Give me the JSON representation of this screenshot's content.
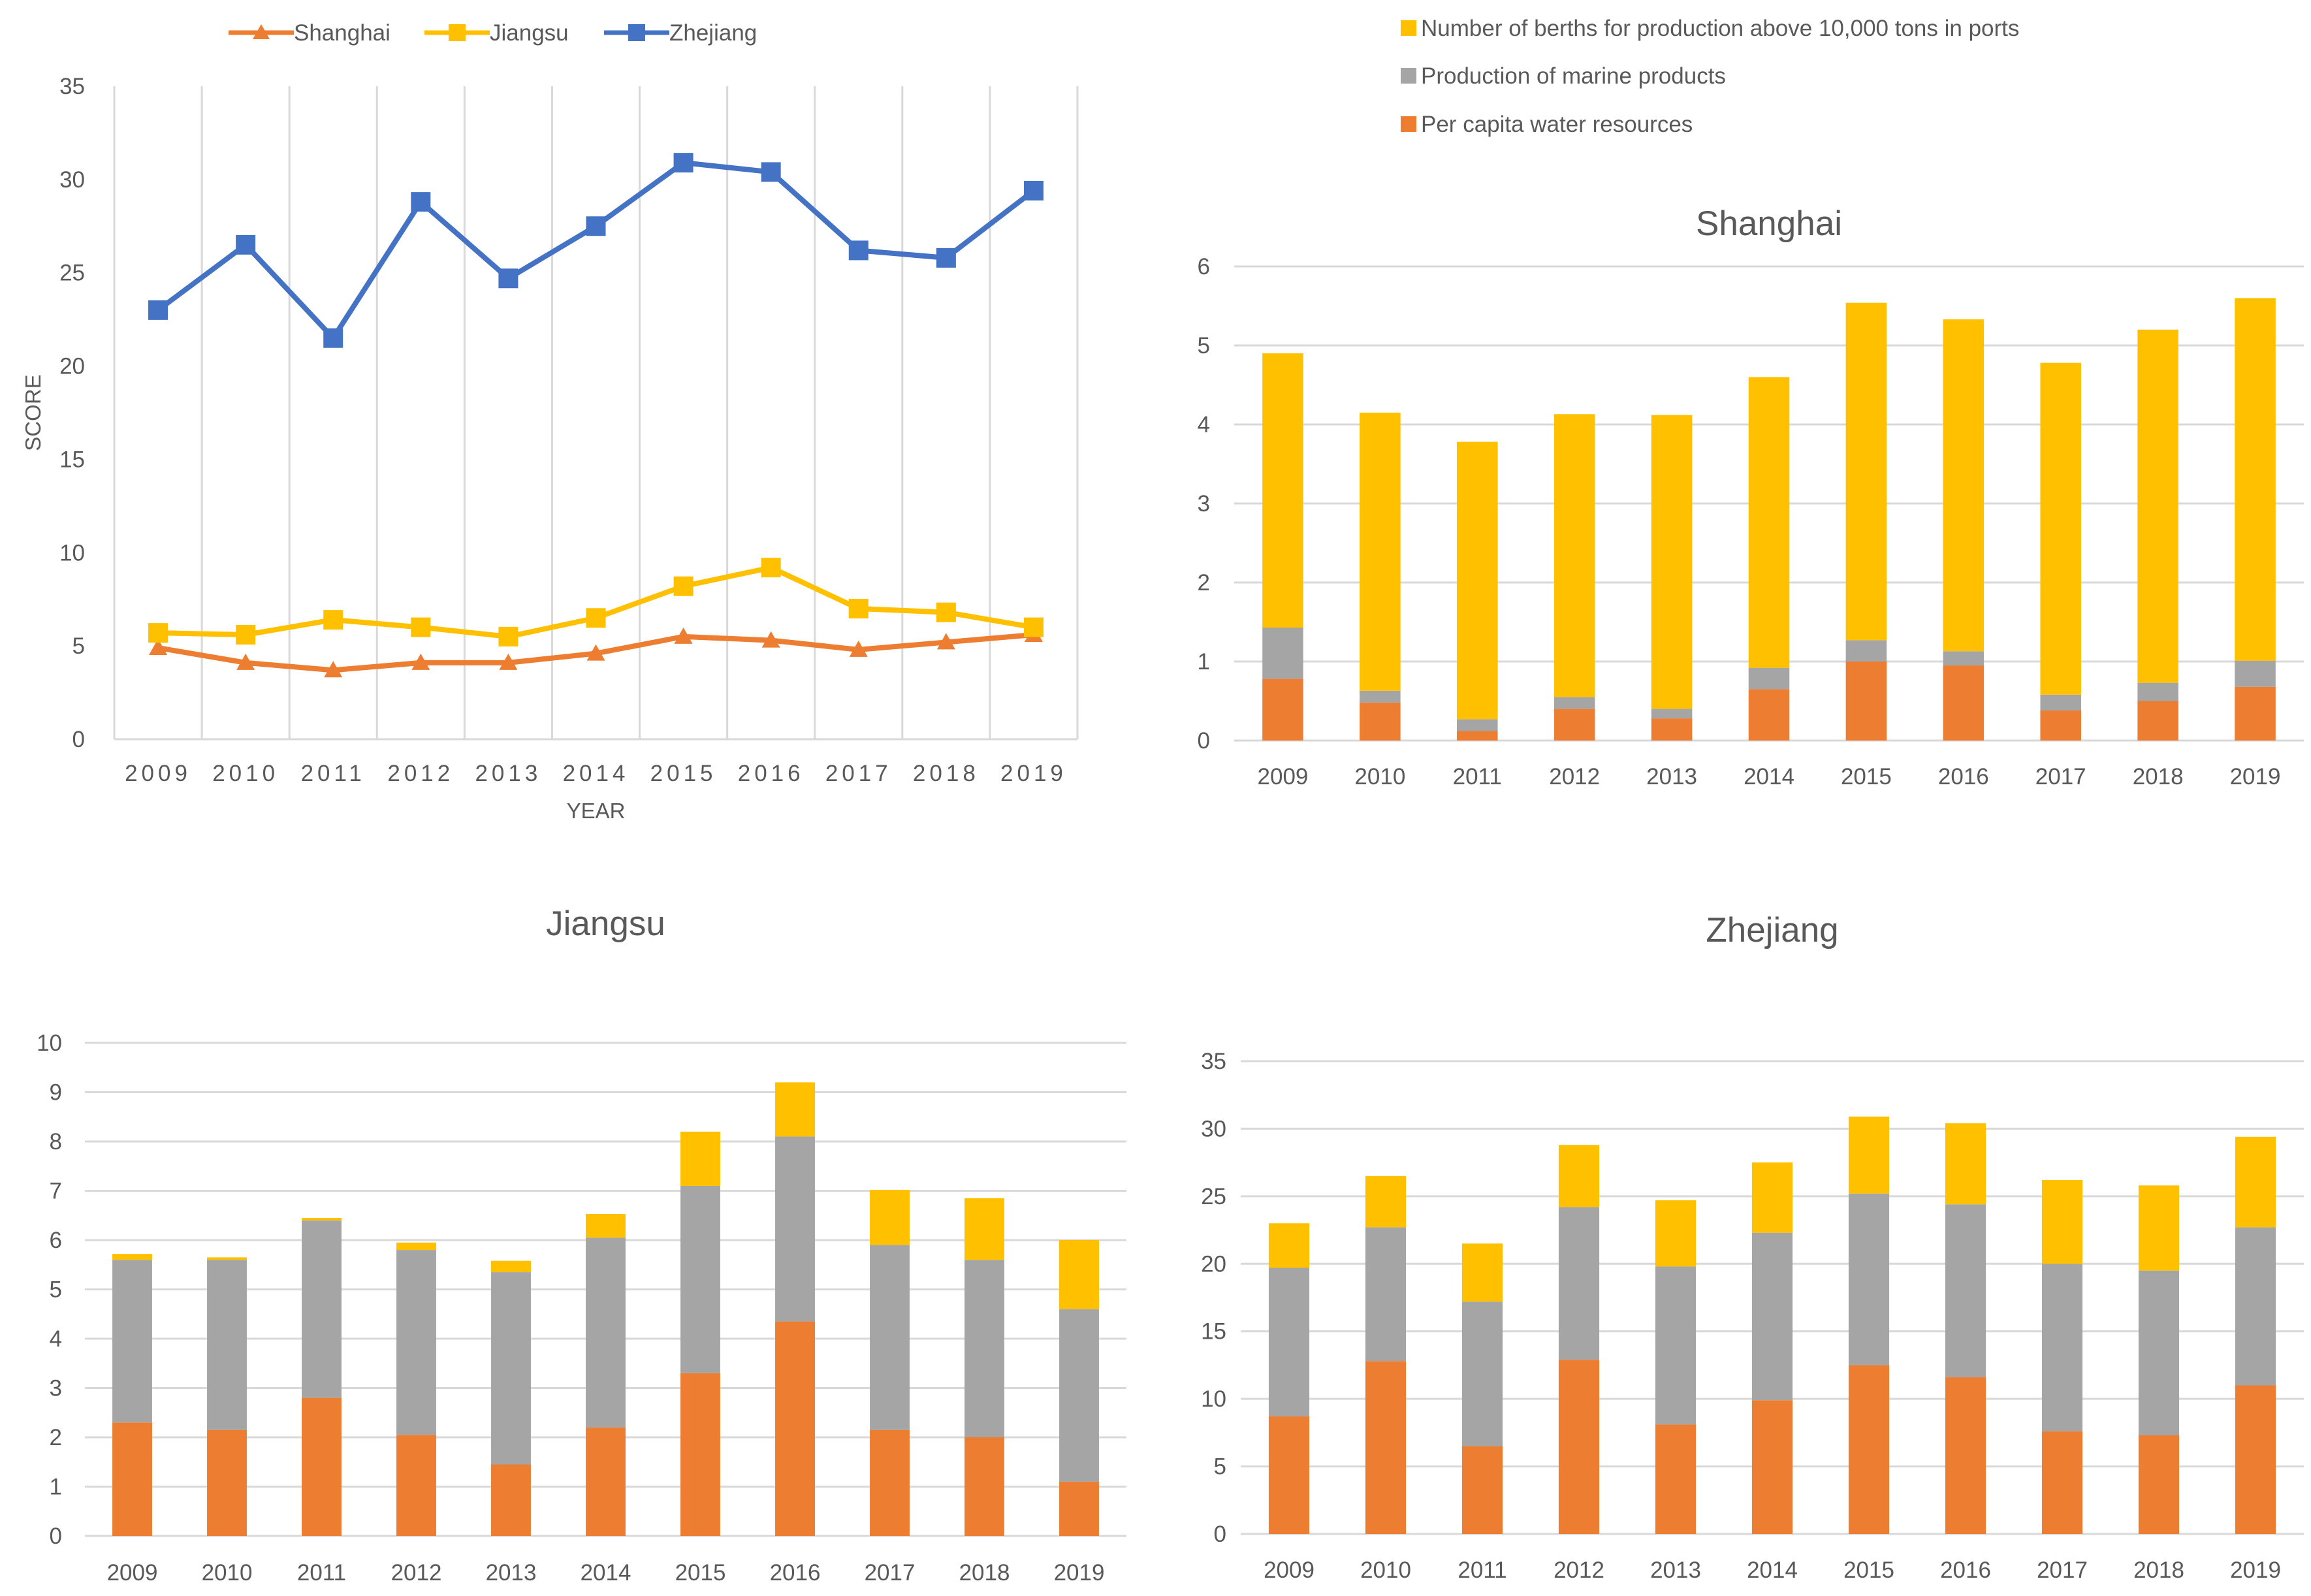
{
  "colors": {
    "shanghai": "#ED7D31",
    "jiangsu": "#FFC000",
    "zhejiang": "#4472C4",
    "water": "#ED7D31",
    "marine": "#A5A5A5",
    "berths": "#FFC000",
    "grid": "#D9D9D9",
    "axis_text": "#595959",
    "title_text": "#595959"
  },
  "chart_data": [
    {
      "type": "line",
      "title": "",
      "xlabel": "YEAR",
      "ylabel": "SCORE",
      "x": [
        "2009",
        "2010",
        "2011",
        "2012",
        "2013",
        "2014",
        "2015",
        "2016",
        "2017",
        "2018",
        "2019"
      ],
      "ylim": [
        0,
        35
      ],
      "yticks": [
        "0",
        "5",
        "10",
        "15",
        "20",
        "25",
        "30",
        "35"
      ],
      "grid": "vertical",
      "legend_position": "top",
      "series": [
        {
          "name": "Shanghai",
          "marker": "triangle",
          "values": [
            4.9,
            4.1,
            3.7,
            4.1,
            4.1,
            4.6,
            5.5,
            5.3,
            4.8,
            5.2,
            5.6
          ]
        },
        {
          "name": "Jiangsu",
          "marker": "square",
          "values": [
            5.7,
            5.6,
            6.4,
            6.0,
            5.5,
            6.5,
            8.2,
            9.2,
            7.0,
            6.8,
            6.0
          ]
        },
        {
          "name": "Zhejiang",
          "marker": "square",
          "values": [
            23.0,
            26.5,
            21.5,
            28.8,
            24.7,
            27.5,
            30.9,
            30.4,
            26.2,
            25.8,
            29.4
          ]
        }
      ]
    },
    {
      "type": "bar",
      "stacked": true,
      "title": "Shanghai",
      "categories": [
        "2009",
        "2010",
        "2011",
        "2012",
        "2013",
        "2014",
        "2015",
        "2016",
        "2017",
        "2018",
        "2019"
      ],
      "ylim": [
        0,
        6
      ],
      "yticks": [
        "0",
        "1",
        "2",
        "3",
        "4",
        "5",
        "6"
      ],
      "grid": "horizontal",
      "legend_position": "top",
      "series": [
        {
          "name": "Per capita water resources",
          "values": [
            0.78,
            0.48,
            0.12,
            0.4,
            0.28,
            0.65,
            1.0,
            0.95,
            0.38,
            0.5,
            0.68
          ]
        },
        {
          "name": "Production of marine products",
          "values": [
            0.65,
            0.15,
            0.15,
            0.15,
            0.12,
            0.27,
            0.27,
            0.18,
            0.2,
            0.23,
            0.33
          ]
        },
        {
          "name": "Number of berths for production above 10,000 tons in ports",
          "values": [
            3.47,
            3.52,
            3.51,
            3.58,
            3.72,
            3.68,
            4.27,
            4.2,
            4.2,
            4.47,
            4.59
          ]
        }
      ]
    },
    {
      "type": "bar",
      "stacked": true,
      "title": "Jiangsu",
      "categories": [
        "2009",
        "2010",
        "2011",
        "2012",
        "2013",
        "2014",
        "2015",
        "2016",
        "2017",
        "2018",
        "2019"
      ],
      "ylim": [
        0,
        10
      ],
      "yticks": [
        "0",
        "1",
        "2",
        "3",
        "4",
        "5",
        "6",
        "7",
        "8",
        "9",
        "10"
      ],
      "grid": "horizontal",
      "series": [
        {
          "name": "Per capita water resources",
          "values": [
            2.3,
            2.15,
            2.8,
            2.05,
            1.45,
            2.2,
            3.3,
            4.35,
            2.15,
            2.0,
            1.1
          ]
        },
        {
          "name": "Production of marine products",
          "values": [
            3.3,
            3.45,
            3.6,
            3.75,
            3.9,
            3.85,
            3.8,
            3.75,
            3.75,
            3.6,
            3.5
          ]
        },
        {
          "name": "Number of berths for production above 10,000 tons in ports",
          "values": [
            0.12,
            0.05,
            0.05,
            0.15,
            0.23,
            0.48,
            1.1,
            1.1,
            1.12,
            1.25,
            1.4
          ]
        }
      ]
    },
    {
      "type": "bar",
      "stacked": true,
      "title": "Zhejiang",
      "categories": [
        "2009",
        "2010",
        "2011",
        "2012",
        "2013",
        "2014",
        "2015",
        "2016",
        "2017",
        "2018",
        "2019"
      ],
      "ylim": [
        0,
        35
      ],
      "yticks": [
        "0",
        "5",
        "10",
        "15",
        "20",
        "25",
        "30",
        "35"
      ],
      "grid": "horizontal",
      "series": [
        {
          "name": "Per capita water resources",
          "values": [
            8.7,
            12.8,
            6.5,
            12.9,
            8.1,
            9.9,
            12.5,
            11.6,
            7.6,
            7.3,
            11.0
          ]
        },
        {
          "name": "Production of marine products",
          "values": [
            11.0,
            9.9,
            10.7,
            11.3,
            11.7,
            12.4,
            12.7,
            12.8,
            12.4,
            12.2,
            11.7
          ]
        },
        {
          "name": "Number of berths for production above 10,000 tons in ports",
          "values": [
            3.3,
            3.8,
            4.3,
            4.6,
            4.9,
            5.2,
            5.7,
            6.0,
            6.2,
            6.3,
            6.7
          ]
        }
      ]
    }
  ]
}
